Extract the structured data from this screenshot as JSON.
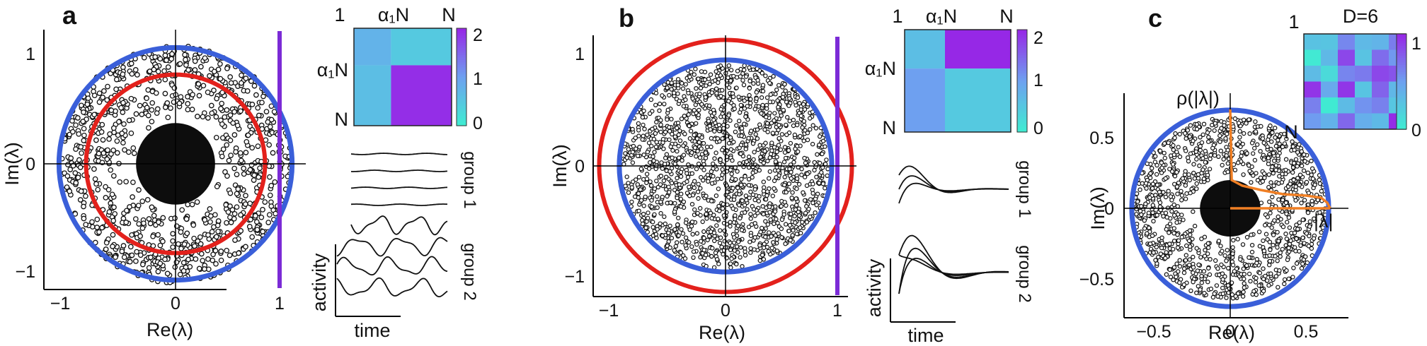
{
  "figure": {
    "panels": [
      "a",
      "b",
      "c"
    ]
  },
  "chart_data": [
    {
      "panel": "a",
      "type": "scatter",
      "title": "",
      "xlabel": "Re(λ)",
      "ylabel": "Im(λ)",
      "xlim": [
        -1.25,
        1.25
      ],
      "ylim": [
        -1.25,
        1.25
      ],
      "xticks": [
        "−1",
        "0",
        "1"
      ],
      "yticks": [
        "1",
        "0",
        "−1"
      ],
      "series": [
        {
          "kind": "eigenvalue-cloud",
          "outer_radius": 1.12,
          "dense_core_radius": 0.38,
          "points": 2600
        }
      ],
      "circles": [
        {
          "role": "bulk-boundary",
          "radius": 1.12,
          "color": "#3a5fd9"
        },
        {
          "role": "mean-radius",
          "radius": 0.86,
          "color": "#e3211c"
        }
      ],
      "vline": {
        "x": 1.0,
        "color": "#7b2bd6"
      },
      "inset_matrix": {
        "tick_labels": {
          "top": [
            "1",
            "α₁N",
            "N"
          ],
          "left": [
            "α₁N",
            "N"
          ]
        },
        "values": [
          [
            0.75,
            0.45
          ],
          [
            0.6,
            1.95
          ]
        ],
        "colorbar": {
          "ticks": [
            "2",
            "1",
            "0"
          ],
          "range": [
            0,
            2
          ]
        }
      },
      "traces": {
        "group_labels": [
          "group 1",
          "group 2"
        ],
        "xlabel": "time",
        "ylabel": "activity",
        "groups": [
          {
            "name": "group 1",
            "n": 4,
            "amplitude": 0.12,
            "mode": "flat"
          },
          {
            "name": "group 2",
            "n": 4,
            "amplitude": 0.9,
            "mode": "oscillating"
          }
        ]
      }
    },
    {
      "panel": "b",
      "type": "scatter",
      "title": "",
      "xlabel": "Re(λ)",
      "ylabel": "Im(λ)",
      "xlim": [
        -1.15,
        1.15
      ],
      "ylim": [
        -1.15,
        1.15
      ],
      "xticks": [
        "−1",
        "0",
        "1"
      ],
      "yticks": [
        "1",
        "0",
        "−1"
      ],
      "series": [
        {
          "kind": "eigenvalue-cloud",
          "outer_radius": 0.95,
          "dense_core_radius": 0.95,
          "points": 3600
        }
      ],
      "circles": [
        {
          "role": "bulk-boundary",
          "radius": 0.95,
          "color": "#3a5fd9"
        },
        {
          "role": "mean-radius",
          "radius": 1.13,
          "color": "#e3211c"
        }
      ],
      "vline": {
        "x": 1.0,
        "color": "#7b2bd6"
      },
      "inset_matrix": {
        "tick_labels": {
          "top": [
            "1",
            "α₁N",
            "N"
          ],
          "left": [
            "α₁N",
            "N"
          ]
        },
        "values": [
          [
            0.6,
            2.0
          ],
          [
            1.0,
            0.45
          ]
        ],
        "colorbar": {
          "ticks": [
            "2",
            "1",
            "0"
          ],
          "range": [
            0,
            2
          ]
        }
      },
      "traces": {
        "group_labels": [
          "group 1",
          "group 2"
        ],
        "xlabel": "time",
        "ylabel": "activity",
        "groups": [
          {
            "name": "group 1",
            "n": 3,
            "amplitude": 0.7,
            "mode": "decaying"
          },
          {
            "name": "group 2",
            "n": 4,
            "amplitude": 1.0,
            "mode": "decaying"
          }
        ]
      }
    },
    {
      "panel": "c",
      "type": "scatter",
      "title": "",
      "xlabel": "Re(λ)",
      "ylabel": "Im(λ)",
      "xlim": [
        -0.75,
        0.85
      ],
      "ylim": [
        -0.75,
        0.75
      ],
      "xticks": [
        "−0.5",
        "0",
        "0.5"
      ],
      "yticks": [
        "0.5",
        "0",
        "−0.5"
      ],
      "series": [
        {
          "kind": "eigenvalue-cloud",
          "outer_radius": 0.65,
          "dense_core_radius": 0.2,
          "points": 3000
        }
      ],
      "circles": [
        {
          "role": "bulk-boundary",
          "radius": 0.65,
          "color": "#3a5fd9"
        }
      ],
      "density_curve": {
        "label": "ρ(|λ|)",
        "x_label": "|λ|",
        "color": "#f07f24",
        "points": [
          [
            0,
            0.7
          ],
          [
            0.01,
            0.2
          ],
          [
            0.08,
            0.16
          ],
          [
            0.2,
            0.13
          ],
          [
            0.35,
            0.1
          ],
          [
            0.5,
            0.09
          ],
          [
            0.6,
            0.075
          ],
          [
            0.64,
            0.04
          ],
          [
            0.66,
            0.0
          ]
        ]
      },
      "inset_matrix": {
        "title": "D=6",
        "tick_labels": {
          "top": [
            "1",
            "N"
          ],
          "left": []
        },
        "size": 6,
        "colorbar": {
          "ticks": [
            "1",
            "0"
          ],
          "range": [
            0,
            1
          ]
        }
      }
    }
  ]
}
